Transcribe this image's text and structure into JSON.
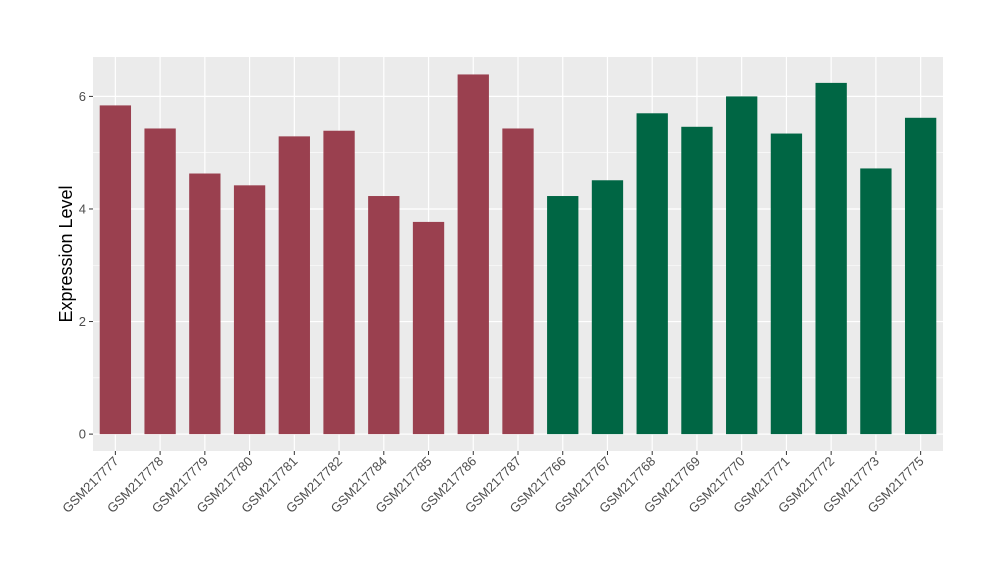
{
  "chart_data": {
    "type": "bar",
    "title": "",
    "xlabel": "",
    "ylabel": "Expression Level",
    "ylim": [
      -0.3,
      6.7
    ],
    "yticks": [
      0,
      2,
      4,
      6
    ],
    "grid": true,
    "categories": [
      "GSM217777",
      "GSM217778",
      "GSM217779",
      "GSM217780",
      "GSM217781",
      "GSM217782",
      "GSM217784",
      "GSM217785",
      "GSM217786",
      "GSM217787",
      "GSM217766",
      "GSM217767",
      "GSM217768",
      "GSM217769",
      "GSM217770",
      "GSM217771",
      "GSM217772",
      "GSM217773",
      "GSM217775"
    ],
    "values": [
      5.84,
      5.43,
      4.63,
      4.42,
      5.29,
      5.39,
      4.23,
      3.77,
      6.39,
      5.43,
      4.23,
      4.51,
      5.7,
      5.46,
      6.0,
      5.34,
      6.24,
      4.72,
      5.62
    ],
    "group_colors": [
      "#9a404f",
      "#006644",
      "#006644"
    ],
    "bar_groups": [
      0,
      0,
      0,
      0,
      0,
      0,
      0,
      0,
      0,
      0,
      1,
      1,
      1,
      1,
      1,
      1,
      1,
      1,
      1
    ],
    "panel_background": "#ebebeb",
    "grid_color": "#ffffff"
  }
}
